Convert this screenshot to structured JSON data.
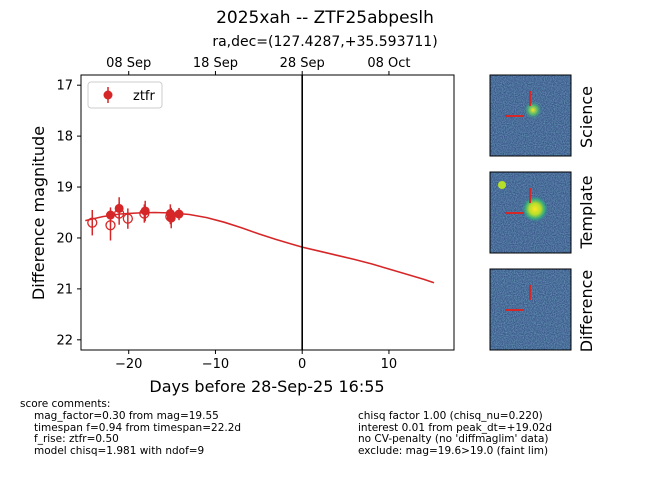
{
  "title": "2025xah -- ZTF25abpeslh",
  "subtitle": "ra,dec=(127.4287,+35.593711)",
  "chart_data": {
    "type": "scatter",
    "xlabel": "Days before 28-Sep-25 16:55",
    "ylabel": "Difference magnitude",
    "xlim": [
      -25.5,
      17.5
    ],
    "ylim": [
      22.2,
      16.8
    ],
    "y_inverted": true,
    "x_ticks": [
      -20,
      -10,
      0,
      10
    ],
    "x_tick_labels": [
      "−20",
      "−10",
      "0",
      "10"
    ],
    "y_ticks": [
      17,
      18,
      19,
      20,
      21,
      22
    ],
    "y_tick_labels": [
      "17",
      "18",
      "19",
      "20",
      "21",
      "22"
    ],
    "top_axis_ticks": [
      -20,
      -10,
      0,
      10
    ],
    "top_axis_labels": [
      "08 Sep",
      "18 Sep",
      "28 Sep",
      "08 Oct"
    ],
    "reference_line_x": 0,
    "legend": {
      "position": "top-left",
      "entries": [
        "ztfr"
      ]
    },
    "color": "#d62728",
    "series": [
      {
        "name": "ztfr",
        "detections": [
          {
            "x": -22.1,
            "y": 19.55,
            "err": 0.15
          },
          {
            "x": -21.1,
            "y": 19.42,
            "err": 0.22
          },
          {
            "x": -18.1,
            "y": 19.47,
            "err": 0.2
          },
          {
            "x": -15.2,
            "y": 19.52,
            "err": 0.18
          },
          {
            "x": -15.1,
            "y": 19.61,
            "err": 0.2
          },
          {
            "x": -14.2,
            "y": 19.53,
            "err": 0.12
          }
        ],
        "limits": [
          {
            "x": -24.2,
            "y": 19.7,
            "err": 0.25
          },
          {
            "x": -22.1,
            "y": 19.75,
            "err": 0.3
          },
          {
            "x": -21.1,
            "y": 19.52,
            "err": 0.22
          },
          {
            "x": -20.1,
            "y": 19.62,
            "err": 0.2
          },
          {
            "x": -18.2,
            "y": 19.52,
            "err": 0.18
          },
          {
            "x": -15.2,
            "y": 19.58,
            "err": 0.15
          }
        ],
        "model": {
          "x": [
            -25,
            -23,
            -21,
            -19,
            -17,
            -15,
            -13,
            -11,
            -9,
            -7,
            -5,
            -3,
            -1,
            0,
            2,
            4,
            6,
            8,
            10,
            12,
            14,
            15.2
          ],
          "y": [
            19.66,
            19.58,
            19.53,
            19.51,
            19.5,
            19.51,
            19.54,
            19.6,
            19.69,
            19.8,
            19.92,
            20.03,
            20.13,
            20.18,
            20.26,
            20.34,
            20.42,
            20.51,
            20.61,
            20.71,
            20.81,
            20.88
          ]
        }
      }
    ]
  },
  "cutouts": [
    "Science",
    "Template",
    "Difference"
  ],
  "score_comments": {
    "header": "score comments:",
    "left": [
      "mag_factor=0.30 from mag=19.55",
      "timespan f=0.94 from timespan=22.2d",
      "f_rise: ztfr=0.50",
      "model chisq=1.981 with ndof=9"
    ],
    "right": [
      "chisq factor 1.00 (chisq_nu=0.220)",
      "interest 0.01 from peak_dt=+19.02d",
      "no CV-penalty (no 'diffmaglim' data)",
      "exclude: mag=19.6>19.0 (faint lim)"
    ]
  }
}
